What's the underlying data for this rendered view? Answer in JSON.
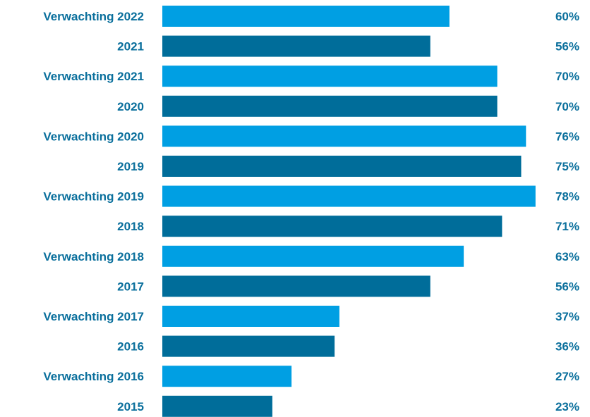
{
  "chart_data": {
    "type": "bar",
    "orientation": "horizontal",
    "categories": [
      "Verwachting 2022",
      "2021",
      "Verwachting 2021",
      "2020",
      "Verwachting 2020",
      "2019",
      "Verwachting 2019",
      "2018",
      "Verwachting 2018",
      "2017",
      "Verwachting 2017",
      "2016",
      "Verwachting 2016",
      "2015"
    ],
    "values": [
      60,
      56,
      70,
      70,
      76,
      75,
      78,
      71,
      63,
      56,
      37,
      36,
      27,
      23
    ],
    "value_labels": [
      "60%",
      "56%",
      "70%",
      "70%",
      "76%",
      "75%",
      "78%",
      "71%",
      "63%",
      "56%",
      "37%",
      "36%",
      "27%",
      "23%"
    ],
    "unit": "%",
    "xlim": [
      0,
      100
    ],
    "grid": false,
    "legend": "none",
    "colors": {
      "expectation": "#009fe3",
      "actual": "#006d9a",
      "label_text": "#0a6f9c"
    }
  }
}
